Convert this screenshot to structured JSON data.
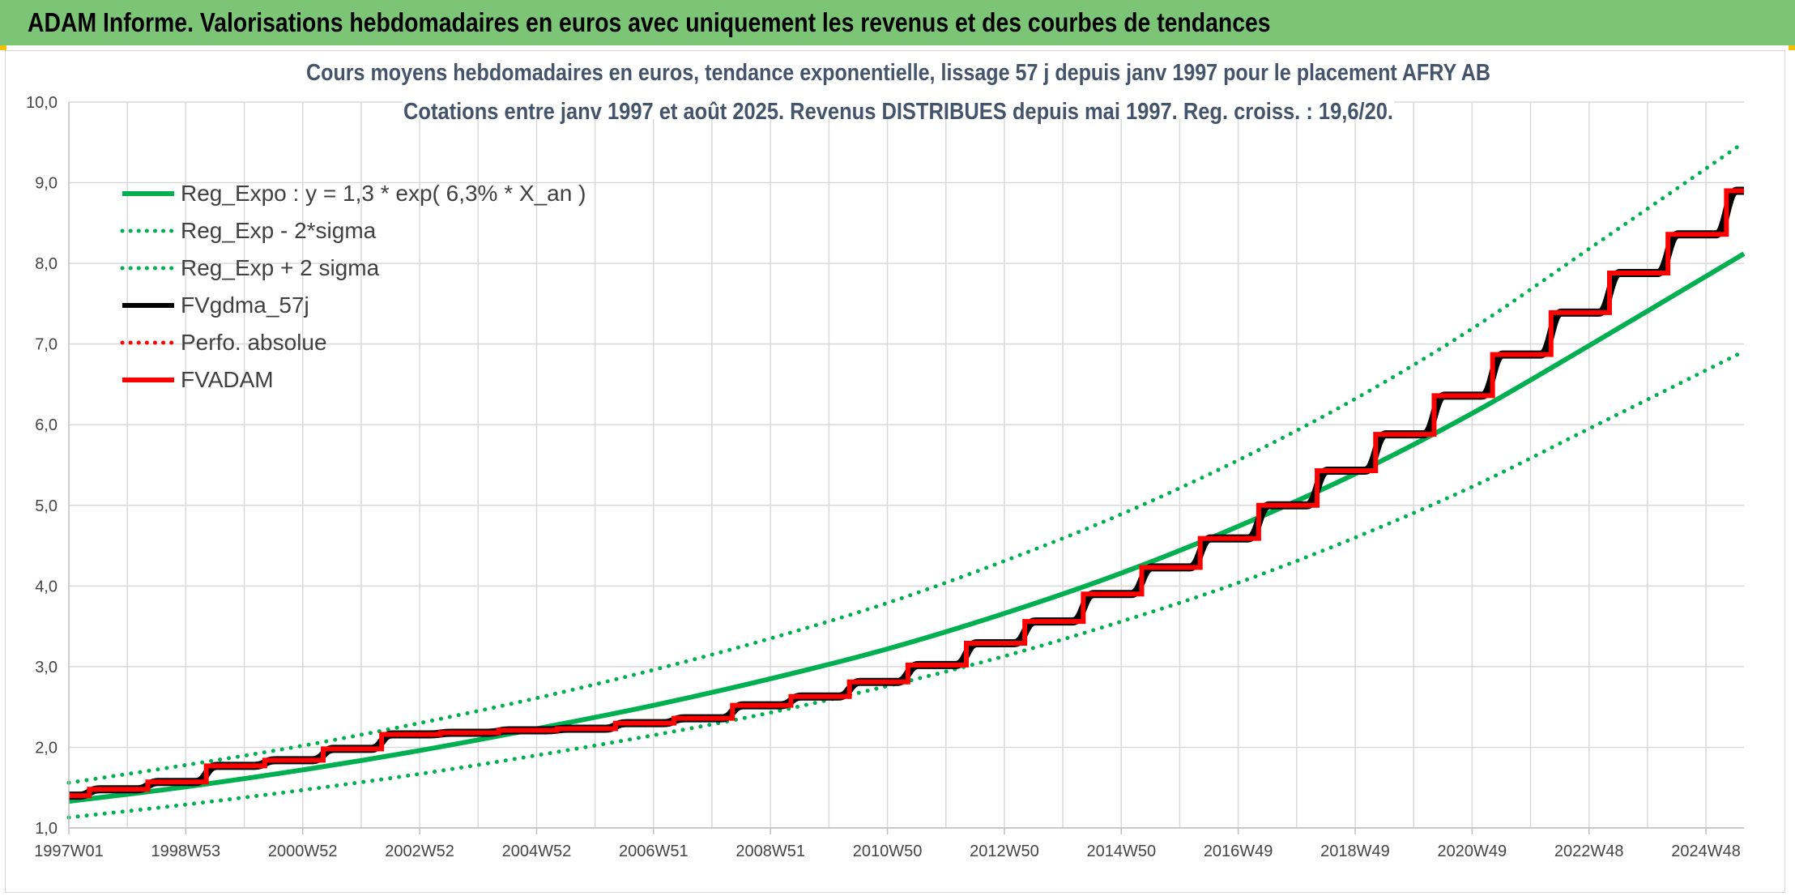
{
  "header": {
    "title": "ADAM Informe. Valorisations hebdomadaires en euros avec uniquement les revenus et des courbes de tendances"
  },
  "colors": {
    "header_bg": "#7cc576",
    "trend": "#00b050",
    "gdma": "#000000",
    "adam": "#ff0000",
    "perfo": "#ff0000",
    "grid": "#d9d9d9"
  },
  "chart_data": {
    "type": "line",
    "title": "Cours moyens hebdomadaires en euros, tendance exponentielle, lissage 57 j depuis janv 1997 pour le placement AFRY AB",
    "subtitle": "Cotations entre janv 1997 et août 2025. Revenus DISTRIBUES depuis mai 1997. Reg. croiss. : 19,6/20.",
    "xlabel": "",
    "ylabel": "",
    "ylim": [
      1.0,
      10.0
    ],
    "xlim": [
      1997.0,
      2025.65
    ],
    "y_ticks": [
      "1,0",
      "2,0",
      "3,0",
      "4,0",
      "5,0",
      "6,0",
      "7,0",
      "8,0",
      "9,0",
      "10,0"
    ],
    "x_ticks": [
      {
        "label": "1997W01",
        "x": 1997.0
      },
      {
        "label": "1998W53",
        "x": 1999.0
      },
      {
        "label": "2000W52",
        "x": 2001.0
      },
      {
        "label": "2002W52",
        "x": 2003.0
      },
      {
        "label": "2004W52",
        "x": 2005.0
      },
      {
        "label": "2006W51",
        "x": 2007.0
      },
      {
        "label": "2008W51",
        "x": 2009.0
      },
      {
        "label": "2010W50",
        "x": 2011.0
      },
      {
        "label": "2012W50",
        "x": 2013.0
      },
      {
        "label": "2014W50",
        "x": 2015.0
      },
      {
        "label": "2016W49",
        "x": 2017.0
      },
      {
        "label": "2018W49",
        "x": 2019.0
      },
      {
        "label": "2020W49",
        "x": 2021.0
      },
      {
        "label": "2022W48",
        "x": 2023.0
      },
      {
        "label": "2024W48",
        "x": 2025.0
      }
    ],
    "grid": true,
    "legend_position": "top-left",
    "series": [
      {
        "name": "Reg_Expo : y = 1,3 * exp( 6,3% *  X_an )",
        "color": "#00b050",
        "style": "solid",
        "x": [
          1997,
          1999,
          2001,
          2003,
          2005,
          2007,
          2009,
          2011,
          2013,
          2015,
          2017,
          2019,
          2021,
          2023,
          2025.65
        ],
        "y": [
          1.33,
          1.51,
          1.72,
          1.96,
          2.23,
          2.52,
          2.85,
          3.22,
          3.66,
          4.16,
          4.74,
          5.39,
          6.14,
          6.98,
          8.12
        ]
      },
      {
        "name": "Reg_Exp - 2*sigma",
        "color": "#00b050",
        "style": "dotted",
        "x": [
          1997,
          1999,
          2001,
          2003,
          2005,
          2007,
          2009,
          2011,
          2013,
          2015,
          2017,
          2019,
          2021,
          2023,
          2025.65
        ],
        "y": [
          1.13,
          1.29,
          1.47,
          1.67,
          1.9,
          2.15,
          2.43,
          2.76,
          3.13,
          3.56,
          4.04,
          4.6,
          5.23,
          5.95,
          6.91
        ]
      },
      {
        "name": "Reg_Exp + 2 sigma",
        "color": "#00b050",
        "style": "dotted",
        "x": [
          1997,
          1999,
          2001,
          2003,
          2005,
          2007,
          2009,
          2011,
          2013,
          2015,
          2017,
          2019,
          2021,
          2023,
          2025.65
        ],
        "y": [
          1.56,
          1.78,
          2.02,
          2.3,
          2.61,
          2.96,
          3.35,
          3.79,
          4.31,
          4.89,
          5.56,
          6.32,
          7.19,
          8.18,
          9.5
        ]
      },
      {
        "name": "FVgdma_57j",
        "color": "#000000",
        "style": "smooth-steps",
        "steps_x": [
          1997.35,
          1998.35,
          1999.35,
          2000.35,
          2001.35,
          2002.35,
          2003.35,
          2004.35,
          2005.35,
          2006.35,
          2007.35,
          2008.35,
          2009.35,
          2010.35,
          2011.35,
          2012.35,
          2013.35,
          2014.35,
          2015.35,
          2016.35,
          2017.35,
          2018.35,
          2019.35,
          2020.35,
          2021.35,
          2022.35,
          2023.35,
          2024.35,
          2025.35
        ],
        "levels": [
          1.4,
          1.48,
          1.57,
          1.77,
          1.84,
          1.98,
          2.16,
          2.18,
          2.21,
          2.23,
          2.3,
          2.36,
          2.52,
          2.63,
          2.81,
          3.02,
          3.29,
          3.56,
          3.9,
          4.23,
          4.59,
          5.0,
          5.43,
          5.88,
          6.36,
          6.87,
          7.39,
          7.88,
          8.36,
          8.9
        ]
      },
      {
        "name": "Perfo. absolue",
        "color": "#ff0000",
        "style": "dotted"
      },
      {
        "name": "FVADAM",
        "color": "#ff0000",
        "style": "steps",
        "steps_x": [
          1997.35,
          1998.35,
          1999.35,
          2000.35,
          2001.35,
          2002.35,
          2003.35,
          2004.35,
          2005.35,
          2006.35,
          2007.35,
          2008.35,
          2009.35,
          2010.35,
          2011.35,
          2012.35,
          2013.35,
          2014.35,
          2015.35,
          2016.35,
          2017.35,
          2018.35,
          2019.35,
          2020.35,
          2021.35,
          2022.35,
          2023.35,
          2024.35,
          2025.35
        ],
        "levels": [
          1.4,
          1.48,
          1.57,
          1.77,
          1.84,
          1.98,
          2.16,
          2.18,
          2.21,
          2.23,
          2.3,
          2.36,
          2.52,
          2.63,
          2.81,
          3.02,
          3.29,
          3.56,
          3.9,
          4.23,
          4.59,
          5.0,
          5.43,
          5.88,
          6.36,
          6.87,
          7.39,
          7.88,
          8.36,
          8.9
        ]
      }
    ]
  }
}
